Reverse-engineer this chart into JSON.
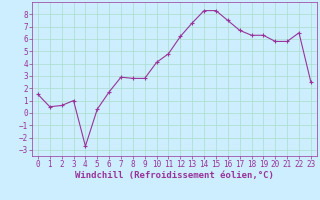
{
  "x": [
    0,
    1,
    2,
    3,
    4,
    5,
    6,
    7,
    8,
    9,
    10,
    11,
    12,
    13,
    14,
    15,
    16,
    17,
    18,
    19,
    20,
    21,
    22,
    23
  ],
  "y": [
    1.5,
    0.5,
    0.6,
    1.0,
    -2.7,
    0.3,
    1.7,
    2.9,
    2.8,
    2.8,
    4.1,
    4.8,
    6.2,
    7.3,
    8.3,
    8.3,
    7.5,
    6.7,
    6.3,
    6.3,
    5.8,
    5.8,
    6.5,
    2.5
  ],
  "line_color": "#993399",
  "marker": "+",
  "marker_size": 3,
  "marker_linewidth": 0.8,
  "line_width": 0.8,
  "bg_color": "#cceeff",
  "grid_color": "#aaddcc",
  "xlabel": "Windchill (Refroidissement éolien,°C)",
  "tick_color": "#993399",
  "label_color": "#993399",
  "ylim": [
    -3.5,
    9.0
  ],
  "xlim": [
    -0.5,
    23.5
  ],
  "yticks": [
    -3,
    -2,
    -1,
    0,
    1,
    2,
    3,
    4,
    5,
    6,
    7,
    8
  ],
  "xticks": [
    0,
    1,
    2,
    3,
    4,
    5,
    6,
    7,
    8,
    9,
    10,
    11,
    12,
    13,
    14,
    15,
    16,
    17,
    18,
    19,
    20,
    21,
    22,
    23
  ],
  "tick_fontsize": 5.5,
  "xlabel_fontsize": 6.5
}
